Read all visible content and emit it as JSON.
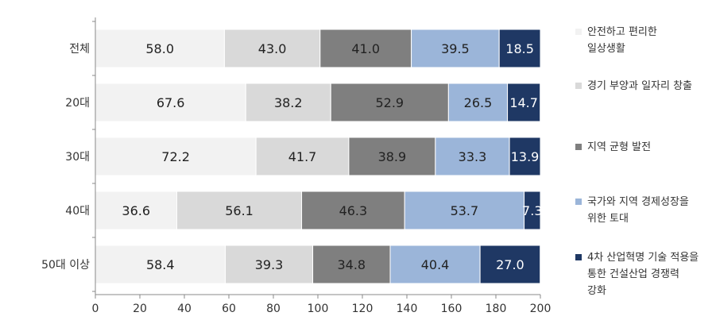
{
  "chart_data": {
    "type": "bar",
    "orientation": "horizontal",
    "stacked": true,
    "categories": [
      "전체",
      "20대",
      "30대",
      "40대",
      "50대 이상"
    ],
    "series": [
      {
        "name": "안전하고 편리한\n일상생활",
        "color": "#f2f2f2",
        "label_color": "#222222",
        "values": [
          58.0,
          67.6,
          72.2,
          36.6,
          58.4
        ]
      },
      {
        "name": "경기 부양과 일자리 창출",
        "color": "#d9d9d9",
        "label_color": "#222222",
        "values": [
          43.0,
          38.2,
          41.7,
          56.1,
          39.3
        ]
      },
      {
        "name": "지역 균형 발전",
        "color": "#7f7f7f",
        "label_color": "#222222",
        "values": [
          41.0,
          52.9,
          38.9,
          46.3,
          34.8
        ]
      },
      {
        "name": "국가와 지역 경제성장을\n위한 토대",
        "color": "#9bb5d9",
        "label_color": "#222222",
        "values": [
          39.5,
          26.5,
          33.3,
          53.7,
          40.4
        ]
      },
      {
        "name": "4차 산업혁명 기술 적용을\n통한 건설산업 경쟁력\n강화",
        "color": "#1f3864",
        "label_color": "#ffffff",
        "values": [
          18.5,
          14.7,
          13.9,
          7.3,
          27.0
        ]
      }
    ],
    "value_labels": [
      [
        "58.0",
        "67.6",
        "72.2",
        "36.6",
        "58.4"
      ],
      [
        "43.0",
        "38.2",
        "41.7",
        "56.1",
        "39.3"
      ],
      [
        "41.0",
        "52.9",
        "38.9",
        "46.3",
        "34.8"
      ],
      [
        "39.5",
        "26.5",
        "33.3",
        "53.7",
        "40.4"
      ],
      [
        "18.5",
        "14.7",
        "13.9",
        "7.3",
        "27.0"
      ]
    ],
    "xlim": [
      0,
      200
    ],
    "xticks": [
      0,
      20,
      40,
      60,
      80,
      100,
      120,
      140,
      160,
      180,
      200
    ],
    "title": "",
    "xlabel": "",
    "ylabel": "",
    "grid": false,
    "legend_position": "right"
  }
}
